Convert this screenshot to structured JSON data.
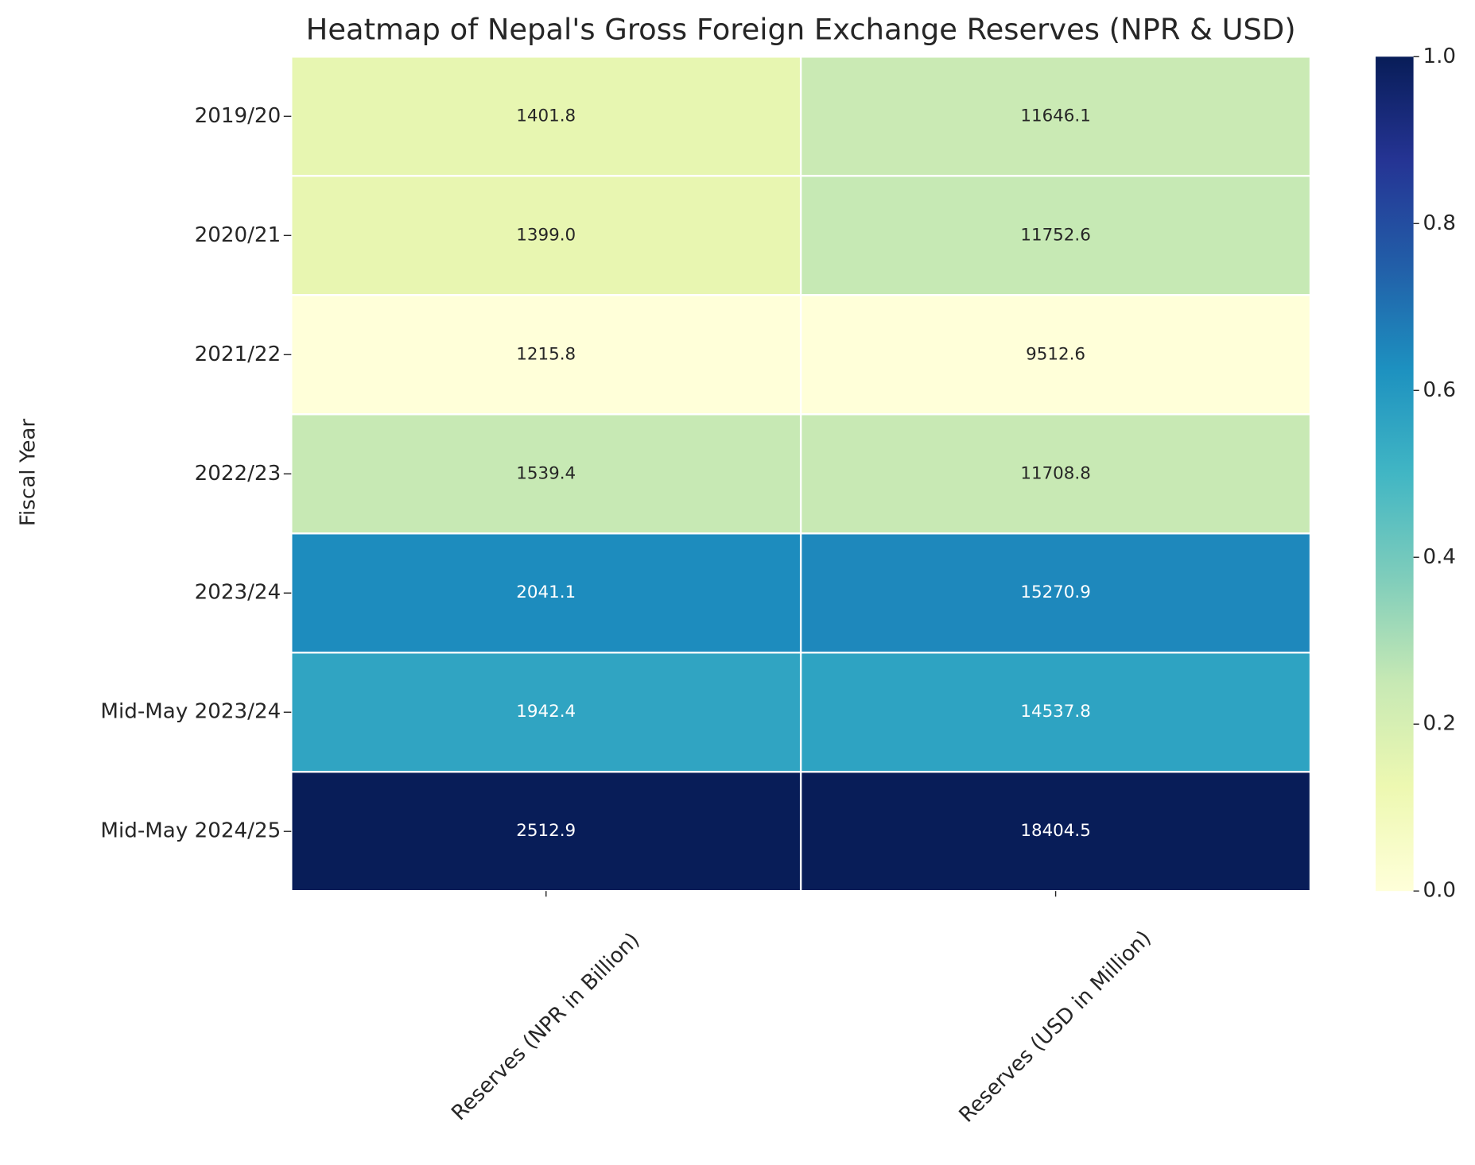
{
  "chart_data": {
    "type": "heatmap",
    "title": "Heatmap of Nepal's Gross Foreign Exchange Reserves (NPR & USD)",
    "ylabel": "Fiscal Year",
    "columns": [
      "Reserves (NPR in Billion)",
      "Reserves (USD in Million)"
    ],
    "rows": [
      "2019/20",
      "2020/21",
      "2021/22",
      "2022/23",
      "2023/24",
      "Mid-May 2023/24",
      "Mid-May 2024/25"
    ],
    "values": [
      [
        1401.8,
        11646.1
      ],
      [
        1399.0,
        11752.6
      ],
      [
        1215.8,
        9512.6
      ],
      [
        1539.4,
        11708.8
      ],
      [
        2041.1,
        15270.9
      ],
      [
        1942.4,
        14537.8
      ],
      [
        2512.9,
        18404.5
      ]
    ],
    "value_labels": [
      [
        "1401.8",
        "11646.1"
      ],
      [
        "1399.0",
        "11752.6"
      ],
      [
        "1215.8",
        "9512.6"
      ],
      [
        "1539.4",
        "11708.8"
      ],
      [
        "2041.1",
        "15270.9"
      ],
      [
        "1942.4",
        "14537.8"
      ],
      [
        "2512.9",
        "18404.5"
      ]
    ],
    "colormap": "YlGnBu",
    "normalize": "column",
    "clim": [
      0,
      1
    ],
    "cticks": [
      {
        "value": 0,
        "label": "0.0"
      },
      {
        "value": 0.2,
        "label": "0.2"
      },
      {
        "value": 0.4,
        "label": "0.4"
      },
      {
        "value": 0.6,
        "label": "0.6"
      },
      {
        "value": 0.8,
        "label": "0.8"
      },
      {
        "value": 1,
        "label": "1.0"
      }
    ]
  }
}
